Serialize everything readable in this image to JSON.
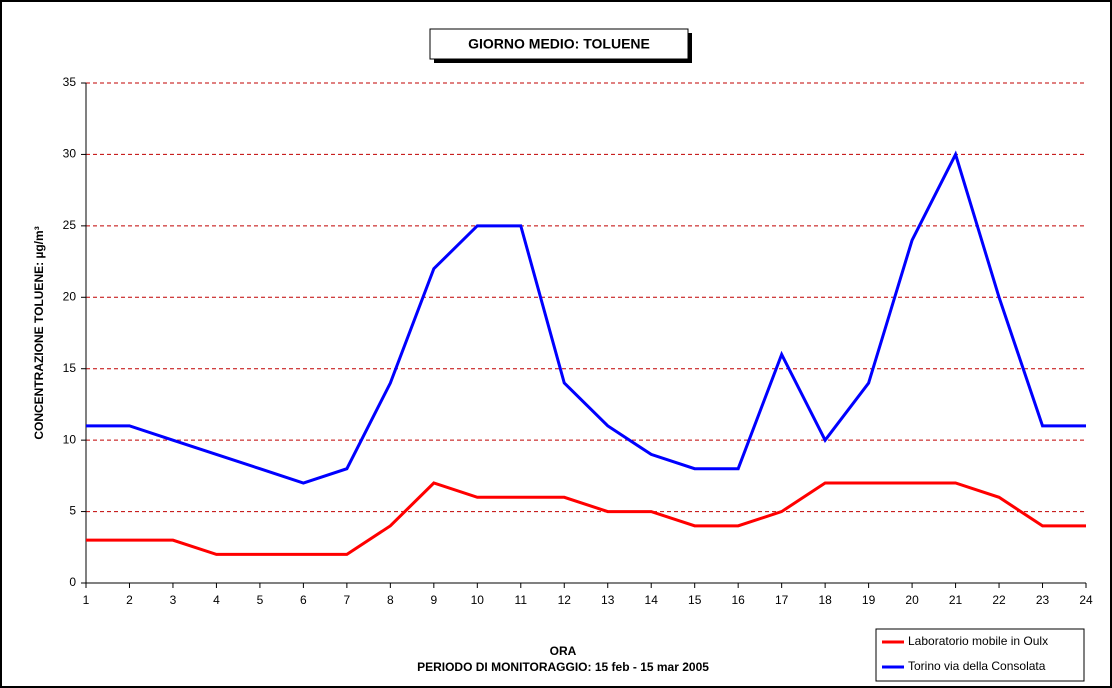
{
  "chart_data": {
    "type": "line",
    "title": "GIORNO MEDIO: TOLUENE",
    "ylabel": "CONCENTRAZIONE TOLUENE: µg/m³",
    "xlabel": "ORA",
    "xlabel_note": "PERIODO DI MONITORAGGIO: 15 feb - 15 mar 2005",
    "x": [
      1,
      2,
      3,
      4,
      5,
      6,
      7,
      8,
      9,
      10,
      11,
      12,
      13,
      14,
      15,
      16,
      17,
      18,
      19,
      20,
      21,
      22,
      23,
      24
    ],
    "xlim": [
      1,
      24
    ],
    "xticks": [
      1,
      2,
      3,
      4,
      5,
      6,
      7,
      8,
      9,
      10,
      11,
      12,
      13,
      14,
      15,
      16,
      17,
      18,
      19,
      20,
      21,
      22,
      23,
      24
    ],
    "ylim": [
      0,
      35
    ],
    "yticks": [
      0,
      5,
      10,
      15,
      20,
      25,
      30,
      35
    ],
    "grid": true,
    "grid_color": "#c00000",
    "legend": "lower right",
    "series": [
      {
        "name": "Laboratorio mobile in Oulx",
        "color": "#ff0000",
        "values": [
          3,
          3,
          3,
          2,
          2,
          2,
          2,
          4,
          7,
          6,
          6,
          6,
          5,
          5,
          4,
          4,
          5,
          7,
          7,
          7,
          7,
          6,
          4,
          4
        ]
      },
      {
        "name": "Torino via della Consolata",
        "color": "#0000ff",
        "values": [
          11,
          11,
          10,
          9,
          8,
          7,
          8,
          14,
          22,
          25,
          25,
          14,
          11,
          9,
          8,
          8,
          16,
          10,
          14,
          24,
          30,
          20,
          11,
          11
        ]
      }
    ]
  }
}
